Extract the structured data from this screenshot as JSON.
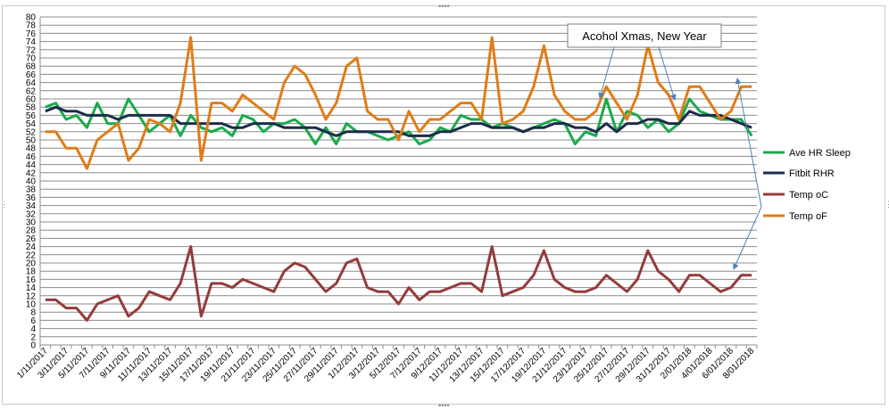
{
  "chart_data": {
    "type": "line",
    "ylim": [
      0,
      80
    ],
    "ytick_step": 2,
    "x_labels": [
      "1/11/2017",
      "3/11/2017",
      "5/11/2017",
      "7/11/2017",
      "9/11/2017",
      "11/11/2017",
      "13/11/2017",
      "15/11/2017",
      "17/11/2017",
      "19/11/2017",
      "21/11/2017",
      "23/11/2017",
      "25/11/2017",
      "27/11/2017",
      "29/11/2017",
      "1/12/2017",
      "3/12/2017",
      "5/12/2017",
      "7/12/2017",
      "9/12/2017",
      "11/12/2017",
      "13/12/2017",
      "15/12/2017",
      "17/12/2017",
      "19/12/2017",
      "21/12/2017",
      "23/12/2017",
      "25/12/2017",
      "27/12/2017",
      "29/12/2017",
      "31/12/2017",
      "2/01/2018",
      "4/01/2018",
      "6/01/2018",
      "8/01/2018"
    ],
    "x": [
      "1/11/2017",
      "2/11/2017",
      "3/11/2017",
      "4/11/2017",
      "5/11/2017",
      "6/11/2017",
      "7/11/2017",
      "8/11/2017",
      "9/11/2017",
      "10/11/2017",
      "11/11/2017",
      "12/11/2017",
      "13/11/2017",
      "14/11/2017",
      "15/11/2017",
      "16/11/2017",
      "17/11/2017",
      "18/11/2017",
      "19/11/2017",
      "20/11/2017",
      "21/11/2017",
      "22/11/2017",
      "23/11/2017",
      "24/11/2017",
      "25/11/2017",
      "26/11/2017",
      "27/11/2017",
      "28/11/2017",
      "29/11/2017",
      "30/11/2017",
      "1/12/2017",
      "2/12/2017",
      "3/12/2017",
      "4/12/2017",
      "5/12/2017",
      "6/12/2017",
      "7/12/2017",
      "8/12/2017",
      "9/12/2017",
      "10/12/2017",
      "11/12/2017",
      "12/12/2017",
      "13/12/2017",
      "14/12/2017",
      "15/12/2017",
      "16/12/2017",
      "17/12/2017",
      "18/12/2017",
      "19/12/2017",
      "20/12/2017",
      "21/12/2017",
      "22/12/2017",
      "23/12/2017",
      "24/12/2017",
      "25/12/2017",
      "26/12/2017",
      "27/12/2017",
      "28/12/2017",
      "29/12/2017",
      "30/12/2017",
      "31/12/2017",
      "1/01/2018",
      "2/01/2018",
      "3/01/2018",
      "4/01/2018",
      "5/01/2018",
      "6/01/2018",
      "7/01/2018",
      "8/01/2018"
    ],
    "series": [
      {
        "name": "Ave HR Sleep",
        "color": "#1aab4b",
        "values": [
          58,
          59,
          55,
          56,
          53,
          59,
          54,
          54,
          60,
          56,
          52,
          54,
          56,
          51,
          56,
          53,
          52,
          53,
          51,
          56,
          55,
          52,
          54,
          54,
          55,
          53,
          49,
          53,
          49,
          54,
          52,
          52,
          51,
          50,
          51,
          52,
          49,
          50,
          53,
          52,
          56,
          55,
          55,
          53,
          54,
          53,
          52,
          53,
          54,
          55,
          54,
          49,
          52,
          51,
          60,
          52,
          57,
          56,
          53,
          55,
          52,
          54,
          60,
          57,
          56,
          55,
          55,
          55,
          51
        ]
      },
      {
        "name": "Fitbit RHR",
        "color": "#1d2d4a",
        "values": [
          57,
          58,
          57,
          57,
          56,
          56,
          56,
          55,
          56,
          56,
          56,
          56,
          56,
          54,
          54,
          54,
          54,
          54,
          53,
          53,
          54,
          54,
          54,
          53,
          53,
          53,
          53,
          52,
          51,
          52,
          52,
          52,
          52,
          52,
          52,
          51,
          51,
          51,
          52,
          52,
          53,
          54,
          54,
          53,
          53,
          53,
          52,
          53,
          53,
          54,
          54,
          53,
          53,
          52,
          54,
          52,
          54,
          54,
          55,
          55,
          54,
          54,
          57,
          56,
          56,
          56,
          55,
          54,
          53
        ]
      },
      {
        "name": "Temp oC",
        "color": "#943b3b",
        "values": [
          11,
          11,
          9,
          9,
          6,
          10,
          11,
          12,
          7,
          9,
          13,
          12,
          11,
          15,
          24,
          7,
          15,
          15,
          14,
          16,
          15,
          14,
          13,
          18,
          20,
          19,
          16,
          13,
          15,
          20,
          21,
          14,
          13,
          13,
          10,
          14,
          11,
          13,
          13,
          14,
          15,
          15,
          13,
          24,
          12,
          13,
          14,
          17,
          23,
          16,
          14,
          13,
          13,
          14,
          17,
          15,
          13,
          16,
          23,
          18,
          16,
          13,
          17,
          17,
          15,
          13,
          14,
          17,
          17
        ]
      },
      {
        "name": "Temp oF",
        "color": "#e07c16",
        "values": [
          52,
          52,
          48,
          48,
          43,
          50,
          52,
          54,
          45,
          48,
          55,
          54,
          52,
          59,
          75,
          45,
          59,
          59,
          57,
          61,
          59,
          57,
          55,
          64,
          68,
          66,
          61,
          55,
          59,
          68,
          70,
          57,
          55,
          55,
          50,
          57,
          52,
          55,
          55,
          57,
          59,
          59,
          55,
          75,
          54,
          55,
          57,
          63,
          73,
          61,
          57,
          55,
          55,
          57,
          63,
          59,
          55,
          61,
          73,
          64,
          61,
          55,
          63,
          63,
          59,
          55,
          57,
          63,
          63
        ]
      }
    ],
    "legend_position": "right",
    "grid": true,
    "annotation": "Acohol Xmas, New Year"
  }
}
